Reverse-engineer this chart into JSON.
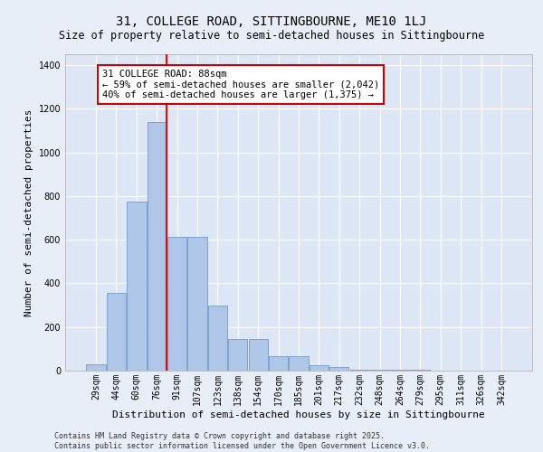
{
  "title": "31, COLLEGE ROAD, SITTINGBOURNE, ME10 1LJ",
  "subtitle": "Size of property relative to semi-detached houses in Sittingbourne",
  "xlabel": "Distribution of semi-detached houses by size in Sittingbourne",
  "ylabel": "Number of semi-detached properties",
  "categories": [
    "29sqm",
    "44sqm",
    "60sqm",
    "76sqm",
    "91sqm",
    "107sqm",
    "123sqm",
    "138sqm",
    "154sqm",
    "170sqm",
    "185sqm",
    "201sqm",
    "217sqm",
    "232sqm",
    "248sqm",
    "264sqm",
    "279sqm",
    "295sqm",
    "311sqm",
    "326sqm",
    "342sqm"
  ],
  "values": [
    30,
    355,
    775,
    1140,
    615,
    615,
    300,
    145,
    145,
    65,
    65,
    25,
    15,
    5,
    5,
    5,
    5,
    2,
    2,
    2,
    2
  ],
  "bar_color": "#aec6e8",
  "bar_edge_color": "#6090c0",
  "red_line_index": 3.5,
  "annotation_text": "31 COLLEGE ROAD: 88sqm\n← 59% of semi-detached houses are smaller (2,042)\n40% of semi-detached houses are larger (1,375) →",
  "annotation_box_facecolor": "#ffffff",
  "annotation_box_edgecolor": "#cc0000",
  "ylim": [
    0,
    1450
  ],
  "yticks": [
    0,
    200,
    400,
    600,
    800,
    1000,
    1200,
    1400
  ],
  "background_color": "#e8eef8",
  "plot_bg_color": "#dce6f5",
  "grid_color": "#ffffff",
  "title_fontsize": 10,
  "subtitle_fontsize": 8.5,
  "axis_label_fontsize": 8,
  "tick_fontsize": 7,
  "annotation_fontsize": 7.5,
  "footer_fontsize": 6,
  "footer": "Contains HM Land Registry data © Crown copyright and database right 2025.\nContains public sector information licensed under the Open Government Licence v3.0."
}
